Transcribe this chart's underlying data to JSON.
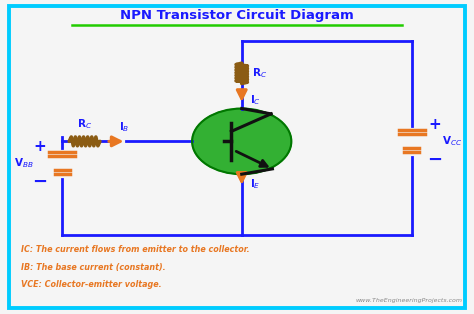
{
  "title": "NPN Transistor Circuit Diagram",
  "title_color": "#1a1aff",
  "title_underline_color": "#22cc00",
  "bg_color": "#f5f5f5",
  "border_color": "#00ccff",
  "orange": "#e87722",
  "brown": "#8B5C14",
  "green_circle": "#22aa22",
  "blue": "#1a1aff",
  "black": "#111111",
  "text_color": "#e87722",
  "footnote1": "IC: The current flows from emitter to the collector.",
  "footnote2": "IB: The base current (constant).",
  "footnote3": "VCE: Collector-emitter voltage.",
  "watermark": "www.TheEngineeringProjects.com"
}
